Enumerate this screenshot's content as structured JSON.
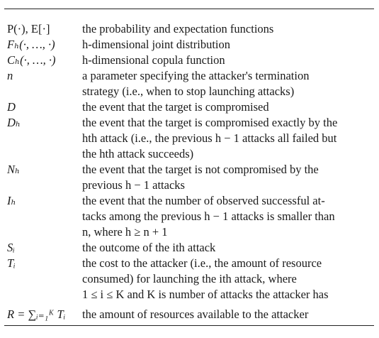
{
  "rows": [
    {
      "symbol": "P(·), E[·]",
      "upright": true,
      "lines": [
        "the probability and expectation functions"
      ]
    },
    {
      "symbol": "Fₕ(·, …, ·)",
      "upright": false,
      "lines": [
        "h-dimensional joint distribution"
      ]
    },
    {
      "symbol": "Cₕ(·, …, ·)",
      "upright": false,
      "lines": [
        "h-dimensional copula function"
      ]
    },
    {
      "symbol": "n",
      "upright": false,
      "lines": [
        "a parameter specifying the attacker's termination",
        "strategy (i.e., when to stop launching attacks)"
      ]
    },
    {
      "symbol": "D",
      "upright": false,
      "lines": [
        "the event that the target is compromised"
      ]
    },
    {
      "symbol": "Dₕ",
      "upright": false,
      "lines": [
        "the event that the target is compromised exactly by the",
        "hth attack (i.e., the previous h − 1 attacks all failed but",
        "the hth attack succeeds)"
      ]
    },
    {
      "symbol": "Nₕ",
      "upright": false,
      "lines": [
        "the event that the target is not compromised by the",
        "previous h − 1 attacks"
      ]
    },
    {
      "symbol": "Iₕ",
      "upright": false,
      "lines": [
        "the event that the number of observed successful at-",
        "tacks among the previous h − 1 attacks is smaller than",
        "n, where h ≥ n + 1"
      ]
    },
    {
      "symbol": "Sᵢ",
      "upright": false,
      "lines": [
        "the outcome of the ith attack"
      ]
    },
    {
      "symbol": "Tᵢ",
      "upright": false,
      "lines": [
        "the cost to the attacker (i.e., the amount of resource",
        "consumed) for launching the ith attack, where",
        "1 ≤ i ≤ K and K is number of attacks the attacker has"
      ]
    },
    {
      "symbol": "R = ∑ᵢ₌₁ᴷ Tᵢ",
      "upright": false,
      "lines": [
        "the amount of resources available to the attacker"
      ]
    }
  ]
}
